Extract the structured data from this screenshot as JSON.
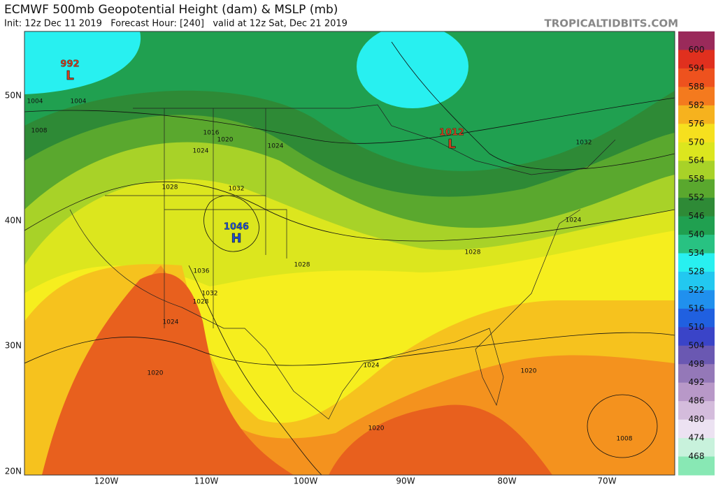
{
  "header": {
    "title": "ECMWF 500mb Geopotential Height (dam) & MSLP (mb)",
    "subtitle": "Init: 12z Dec 11 2019   Forecast Hour: [240]   valid at 12z Sat, Dec 21 2019",
    "site": "TROPICALTIDBITS.COM"
  },
  "map": {
    "lat_labels": [
      "50N",
      "40N",
      "30N",
      "20N"
    ],
    "lon_labels": [
      "120W",
      "110W",
      "100W",
      "90W",
      "80W",
      "70W"
    ],
    "pressure_centers": [
      {
        "value": 992,
        "symbol": "L",
        "color": "#d04020"
      },
      {
        "value": 1012,
        "symbol": "L",
        "color": "#d04020"
      },
      {
        "value": 1046,
        "symbol": "H",
        "color": "#2050d0"
      }
    ],
    "contour_labels": [
      1004,
      1004,
      1008,
      1016,
      1020,
      1024,
      1024,
      1028,
      1032,
      1028,
      1036,
      1032,
      1028,
      1024,
      1024,
      1028,
      1032,
      1024,
      1020,
      1020,
      1020,
      1008
    ]
  },
  "colorbar": {
    "levels": [
      600,
      594,
      588,
      582,
      576,
      570,
      564,
      558,
      552,
      546,
      540,
      534,
      528,
      522,
      516,
      510,
      504,
      498,
      492,
      486,
      480,
      474,
      468
    ],
    "colors": [
      "#9a2a5a",
      "#e0301e",
      "#ee521e",
      "#f47a1e",
      "#f6b21e",
      "#f6e01e",
      "#dce61e",
      "#a8d228",
      "#5aa82e",
      "#2e8a36",
      "#20a050",
      "#28c282",
      "#28f0f0",
      "#22c8f0",
      "#2090ee",
      "#2060e0",
      "#3a44c8",
      "#6a58b2",
      "#9478b8",
      "#b898c8",
      "#d4bcdc",
      "#ece2f2",
      "#c8f2dc",
      "#88e8b4"
    ]
  }
}
